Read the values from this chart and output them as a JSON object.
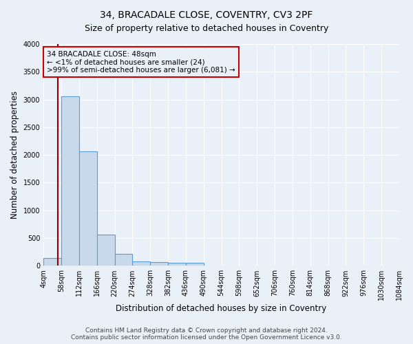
{
  "title1": "34, BRACADALE CLOSE, COVENTRY, CV3 2PF",
  "title2": "Size of property relative to detached houses in Coventry",
  "xlabel": "Distribution of detached houses by size in Coventry",
  "ylabel": "Number of detached properties",
  "bin_edges": [
    4,
    58,
    112,
    166,
    220,
    274,
    328,
    382,
    436,
    490,
    544,
    598,
    652,
    706,
    760,
    814,
    868,
    922,
    976,
    1030,
    1084
  ],
  "bar_heights": [
    140,
    3060,
    2060,
    560,
    220,
    80,
    60,
    50,
    50,
    0,
    0,
    0,
    0,
    0,
    0,
    0,
    0,
    0,
    0,
    0
  ],
  "bar_color": "#c9d9ec",
  "bar_edge_color": "#5b9bd5",
  "background_color": "#eaf0f8",
  "red_line_x": 48,
  "annotation_line1": "34 BRACADALE CLOSE: 48sqm",
  "annotation_line2": "← <1% of detached houses are smaller (24)",
  "annotation_line3": ">99% of semi-detached houses are larger (6,081) →",
  "annotation_box_color": "#cc0000",
  "ylim": [
    0,
    4000
  ],
  "yticks": [
    0,
    500,
    1000,
    1500,
    2000,
    2500,
    3000,
    3500,
    4000
  ],
  "footer_text": "Contains HM Land Registry data © Crown copyright and database right 2024.\nContains public sector information licensed under the Open Government Licence v3.0.",
  "title1_fontsize": 10,
  "title2_fontsize": 9,
  "xlabel_fontsize": 8.5,
  "ylabel_fontsize": 8.5,
  "annotation_fontsize": 7.5,
  "footer_fontsize": 6.5,
  "tick_fontsize": 7
}
